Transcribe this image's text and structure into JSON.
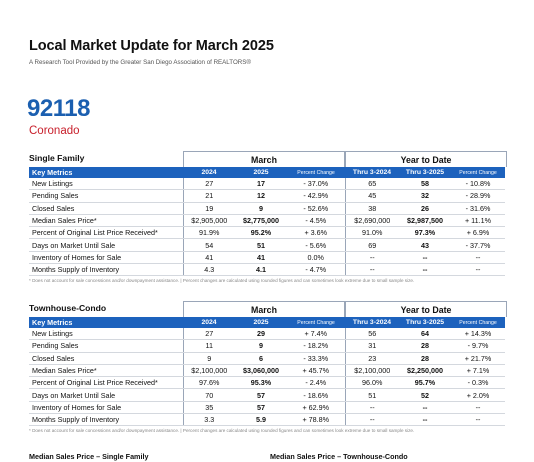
{
  "header": {
    "title": "Local Market Update for March 2025",
    "subtitle": "A Research Tool Provided by the Greater San Diego Association of REALTORS®",
    "zip": "92118",
    "city": "Coronado"
  },
  "colors": {
    "accent_blue": "#1d62bd",
    "zip_blue": "#1b5fb0",
    "city_red": "#c8202c"
  },
  "columns": {
    "key_metrics": "Key Metrics",
    "y2024": "2024",
    "y2025": "2025",
    "pct": "Percent Change",
    "thru2024": "Thru 3-2024",
    "thru2025": "Thru 3-2025"
  },
  "groups": {
    "month": "March",
    "ytd": "Year to Date"
  },
  "sections": [
    {
      "name": "Single Family",
      "rows": [
        {
          "label": "New Listings",
          "m24": "27",
          "m25": "17",
          "mpct": "- 37.0%",
          "y24": "65",
          "y25": "58",
          "ypct": "- 10.8%"
        },
        {
          "label": "Pending Sales",
          "m24": "21",
          "m25": "12",
          "mpct": "- 42.9%",
          "y24": "45",
          "y25": "32",
          "ypct": "- 28.9%"
        },
        {
          "label": "Closed Sales",
          "m24": "19",
          "m25": "9",
          "mpct": "- 52.6%",
          "y24": "38",
          "y25": "26",
          "ypct": "- 31.6%"
        },
        {
          "label": "Median Sales Price*",
          "m24": "$2,905,000",
          "m25": "$2,775,000",
          "mpct": "- 4.5%",
          "y24": "$2,690,000",
          "y25": "$2,987,500",
          "ypct": "+ 11.1%"
        },
        {
          "label": "Percent of Original List Price Received*",
          "m24": "91.9%",
          "m25": "95.2%",
          "mpct": "+ 3.6%",
          "y24": "91.0%",
          "y25": "97.3%",
          "ypct": "+ 6.9%"
        },
        {
          "label": "Days on Market Until Sale",
          "m24": "54",
          "m25": "51",
          "mpct": "- 5.6%",
          "y24": "69",
          "y25": "43",
          "ypct": "- 37.7%"
        },
        {
          "label": "Inventory of Homes for Sale",
          "m24": "41",
          "m25": "41",
          "mpct": "0.0%",
          "y24": "--",
          "y25": "--",
          "ypct": "--"
        },
        {
          "label": "Months Supply of Inventory",
          "m24": "4.3",
          "m25": "4.1",
          "mpct": "- 4.7%",
          "y24": "--",
          "y25": "--",
          "ypct": "--"
        }
      ],
      "note": "* Does not account for sale concessions and/or downpayment assistance. | Percent changes are calculated using rounded figures and can sometimes look extreme due to small sample size."
    },
    {
      "name": "Townhouse-Condo",
      "rows": [
        {
          "label": "New Listings",
          "m24": "27",
          "m25": "29",
          "mpct": "+ 7.4%",
          "y24": "56",
          "y25": "64",
          "ypct": "+ 14.3%"
        },
        {
          "label": "Pending Sales",
          "m24": "11",
          "m25": "9",
          "mpct": "- 18.2%",
          "y24": "31",
          "y25": "28",
          "ypct": "- 9.7%"
        },
        {
          "label": "Closed Sales",
          "m24": "9",
          "m25": "6",
          "mpct": "- 33.3%",
          "y24": "23",
          "y25": "28",
          "ypct": "+ 21.7%"
        },
        {
          "label": "Median Sales Price*",
          "m24": "$2,100,000",
          "m25": "$3,060,000",
          "mpct": "+ 45.7%",
          "y24": "$2,100,000",
          "y25": "$2,250,000",
          "ypct": "+ 7.1%"
        },
        {
          "label": "Percent of Original List Price Received*",
          "m24": "97.6%",
          "m25": "95.3%",
          "mpct": "- 2.4%",
          "y24": "96.0%",
          "y25": "95.7%",
          "ypct": "- 0.3%"
        },
        {
          "label": "Days on Market Until Sale",
          "m24": "70",
          "m25": "57",
          "mpct": "- 18.6%",
          "y24": "51",
          "y25": "52",
          "ypct": "+ 2.0%"
        },
        {
          "label": "Inventory of Homes for Sale",
          "m24": "35",
          "m25": "57",
          "mpct": "+ 62.9%",
          "y24": "--",
          "y25": "--",
          "ypct": "--"
        },
        {
          "label": "Months Supply of Inventory",
          "m24": "3.3",
          "m25": "5.9",
          "mpct": "+ 78.8%",
          "y24": "--",
          "y25": "--",
          "ypct": "--"
        }
      ],
      "note": "* Does not account for sale concessions and/or downpayment assistance. | Percent changes are calculated using rounded figures and can sometimes look extreme due to small sample size."
    }
  ],
  "footer": {
    "left": "Median Sales Price – Single Family",
    "right": "Median Sales Price – Townhouse-Condo"
  }
}
